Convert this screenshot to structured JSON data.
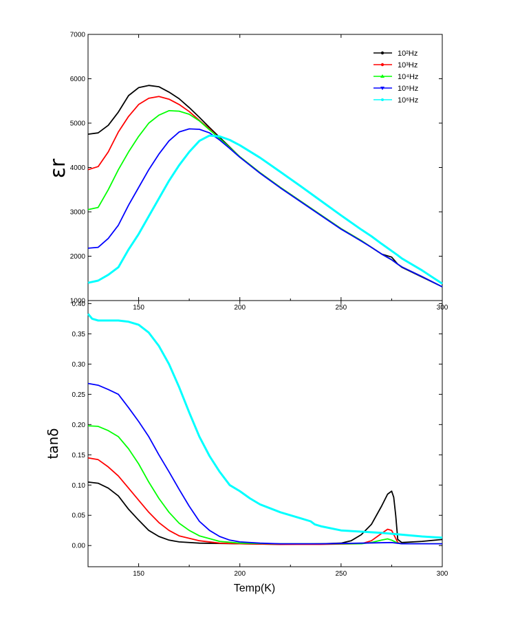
{
  "chart_data": [
    {
      "type": "line",
      "title": "",
      "xlabel": "",
      "ylabel": "εr",
      "xlim": [
        125,
        300
      ],
      "ylim": [
        1000,
        7000
      ],
      "xticks": [
        150,
        200,
        250,
        300
      ],
      "yticks": [
        1000,
        2000,
        3000,
        4000,
        5000,
        6000,
        7000
      ],
      "legend_position": "top-right",
      "series": [
        {
          "name": "10²Hz",
          "color": "#000000",
          "x": [
            125,
            130,
            135,
            140,
            145,
            150,
            155,
            160,
            165,
            170,
            175,
            180,
            185,
            190,
            195,
            200,
            210,
            220,
            230,
            240,
            250,
            260,
            265,
            270,
            275,
            278,
            280,
            290,
            300
          ],
          "y": [
            4750,
            4780,
            4950,
            5250,
            5620,
            5800,
            5850,
            5820,
            5700,
            5550,
            5350,
            5130,
            4900,
            4680,
            4460,
            4240,
            3880,
            3550,
            3240,
            2930,
            2620,
            2350,
            2200,
            2050,
            1980,
            1820,
            1750,
            1530,
            1310
          ]
        },
        {
          "name": "10³Hz",
          "color": "#ff0000",
          "x": [
            125,
            130,
            135,
            140,
            145,
            150,
            155,
            160,
            165,
            170,
            175,
            180,
            185,
            190,
            195,
            200,
            210,
            220,
            230,
            240,
            250,
            260,
            265,
            270,
            275,
            278,
            280,
            290,
            300
          ],
          "y": [
            3950,
            4020,
            4350,
            4800,
            5150,
            5420,
            5560,
            5600,
            5540,
            5420,
            5260,
            5060,
            4870,
            4650,
            4450,
            4240,
            3880,
            3550,
            3240,
            2930,
            2620,
            2350,
            2200,
            2050,
            1920,
            1820,
            1760,
            1540,
            1310
          ]
        },
        {
          "name": "10⁴Hz",
          "color": "#00ff00",
          "x": [
            125,
            130,
            135,
            140,
            145,
            150,
            155,
            160,
            165,
            170,
            175,
            180,
            185,
            190,
            195,
            200,
            210,
            220,
            230,
            240,
            250,
            260,
            265,
            270,
            275,
            278,
            280,
            290,
            300
          ],
          "y": [
            3050,
            3100,
            3500,
            3950,
            4350,
            4700,
            5000,
            5180,
            5280,
            5270,
            5200,
            5050,
            4850,
            4650,
            4450,
            4240,
            3880,
            3550,
            3240,
            2930,
            2620,
            2350,
            2200,
            2050,
            1920,
            1820,
            1760,
            1540,
            1310
          ]
        },
        {
          "name": "10⁵Hz",
          "color": "#0000ff",
          "x": [
            125,
            130,
            135,
            140,
            145,
            150,
            155,
            160,
            165,
            170,
            175,
            180,
            185,
            190,
            195,
            200,
            210,
            220,
            230,
            240,
            250,
            260,
            265,
            270,
            275,
            278,
            280,
            290,
            300
          ],
          "y": [
            2180,
            2200,
            2400,
            2700,
            3150,
            3550,
            3950,
            4300,
            4600,
            4800,
            4870,
            4860,
            4780,
            4620,
            4430,
            4230,
            3870,
            3540,
            3230,
            2920,
            2610,
            2340,
            2200,
            2050,
            1920,
            1820,
            1760,
            1540,
            1310
          ]
        },
        {
          "name": "10⁶Hz",
          "color": "#00ffff",
          "x": [
            125,
            130,
            135,
            140,
            145,
            150,
            155,
            160,
            165,
            170,
            175,
            180,
            185,
            190,
            195,
            200,
            210,
            220,
            230,
            240,
            250,
            260,
            265,
            270,
            275,
            278,
            280,
            290,
            300
          ],
          "y": [
            1400,
            1450,
            1580,
            1750,
            2150,
            2500,
            2900,
            3300,
            3700,
            4050,
            4350,
            4600,
            4720,
            4700,
            4620,
            4500,
            4220,
            3900,
            3580,
            3250,
            2920,
            2600,
            2450,
            2280,
            2120,
            2020,
            1950,
            1680,
            1380
          ]
        }
      ]
    },
    {
      "type": "line",
      "title": "",
      "xlabel": "Temp(K)",
      "ylabel": "tanδ",
      "xlim": [
        125,
        300
      ],
      "ylim": [
        -0.035,
        0.405
      ],
      "xticks": [
        150,
        200,
        250,
        300
      ],
      "yticks": [
        0.0,
        0.05,
        0.1,
        0.15,
        0.2,
        0.25,
        0.3,
        0.35,
        0.4
      ],
      "series": [
        {
          "name": "10²Hz",
          "color": "#000000",
          "x": [
            125,
            130,
            135,
            140,
            145,
            150,
            155,
            160,
            165,
            170,
            180,
            200,
            220,
            240,
            250,
            255,
            260,
            265,
            270,
            273,
            275,
            276,
            277,
            278,
            280,
            290,
            300
          ],
          "y": [
            0.105,
            0.103,
            0.095,
            0.082,
            0.06,
            0.042,
            0.025,
            0.015,
            0.009,
            0.006,
            0.004,
            0.003,
            0.002,
            0.003,
            0.004,
            0.008,
            0.018,
            0.035,
            0.065,
            0.085,
            0.09,
            0.08,
            0.05,
            0.01,
            0.005,
            0.007,
            0.01
          ]
        },
        {
          "name": "10³Hz",
          "color": "#ff0000",
          "x": [
            125,
            130,
            135,
            140,
            145,
            150,
            155,
            160,
            165,
            170,
            180,
            190,
            200,
            220,
            240,
            260,
            265,
            270,
            273,
            275,
            277,
            278,
            280,
            290,
            300
          ],
          "y": [
            0.145,
            0.142,
            0.13,
            0.115,
            0.095,
            0.075,
            0.055,
            0.038,
            0.025,
            0.016,
            0.008,
            0.004,
            0.003,
            0.002,
            0.002,
            0.003,
            0.008,
            0.02,
            0.027,
            0.025,
            0.012,
            0.005,
            0.003,
            0.003,
            0.003
          ]
        },
        {
          "name": "10⁴Hz",
          "color": "#00ff00",
          "x": [
            125,
            130,
            135,
            140,
            145,
            150,
            155,
            160,
            165,
            170,
            175,
            180,
            190,
            200,
            220,
            240,
            260,
            265,
            270,
            273,
            275,
            278,
            280,
            290,
            300
          ],
          "y": [
            0.198,
            0.197,
            0.19,
            0.18,
            0.16,
            0.135,
            0.105,
            0.078,
            0.055,
            0.037,
            0.025,
            0.016,
            0.007,
            0.004,
            0.003,
            0.003,
            0.003,
            0.005,
            0.009,
            0.011,
            0.009,
            0.004,
            0.003,
            0.003,
            0.003
          ]
        },
        {
          "name": "10⁵Hz",
          "color": "#0000ff",
          "x": [
            125,
            130,
            135,
            140,
            145,
            150,
            155,
            160,
            165,
            170,
            175,
            180,
            185,
            190,
            195,
            200,
            210,
            220,
            240,
            260,
            275,
            280,
            290,
            300
          ],
          "y": [
            0.268,
            0.265,
            0.258,
            0.25,
            0.228,
            0.205,
            0.18,
            0.15,
            0.122,
            0.093,
            0.065,
            0.04,
            0.025,
            0.015,
            0.009,
            0.006,
            0.004,
            0.003,
            0.003,
            0.004,
            0.005,
            0.003,
            0.003,
            0.003
          ]
        },
        {
          "name": "10⁶Hz",
          "color": "#00ffff",
          "x": [
            125,
            127,
            130,
            135,
            140,
            145,
            150,
            155,
            160,
            165,
            170,
            175,
            180,
            185,
            190,
            195,
            200,
            205,
            210,
            220,
            230,
            235,
            237,
            240,
            250,
            260,
            270,
            280,
            290,
            300
          ],
          "y": [
            0.383,
            0.375,
            0.372,
            0.372,
            0.372,
            0.37,
            0.365,
            0.352,
            0.33,
            0.3,
            0.262,
            0.22,
            0.18,
            0.148,
            0.122,
            0.1,
            0.09,
            0.078,
            0.068,
            0.055,
            0.045,
            0.04,
            0.035,
            0.032,
            0.025,
            0.023,
            0.021,
            0.018,
            0.015,
            0.013
          ]
        }
      ]
    }
  ]
}
